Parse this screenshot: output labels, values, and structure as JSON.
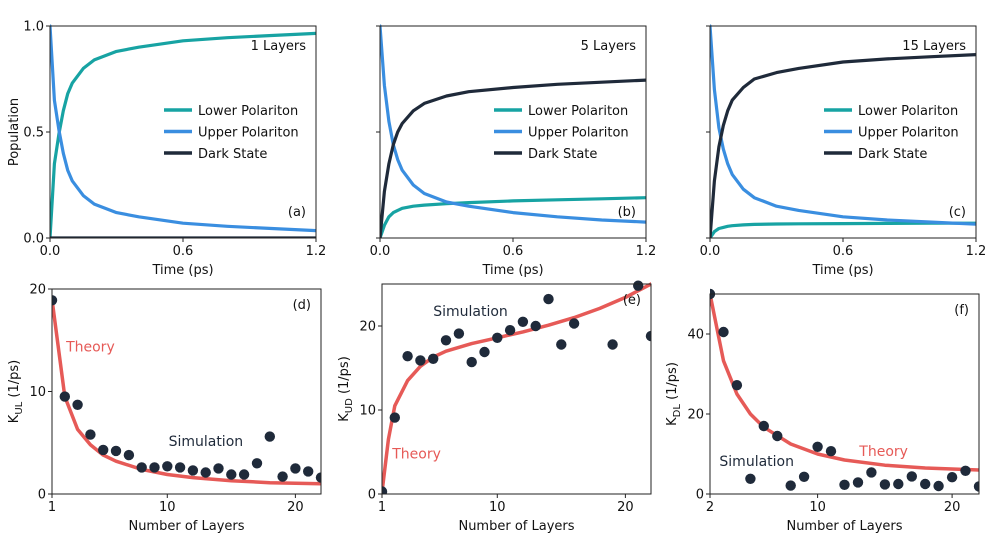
{
  "colors": {
    "lower": "#17a3a3",
    "upper": "#3a8ee0",
    "dark": "#1f2a3a",
    "theory": "#e65a57",
    "points": "#1f2a3a"
  },
  "chart_data": [
    {
      "id": "a",
      "type": "line",
      "panel_label": "(a)",
      "title": "1 Layers",
      "xlabel": "Time (ps)",
      "ylabel": "Population",
      "xlim": [
        0,
        1.2
      ],
      "ylim": [
        0,
        1
      ],
      "xticks": [
        0,
        0.6,
        1.2
      ],
      "xtick_labels": [
        "0.0",
        "0.6",
        "1.2"
      ],
      "yticks": [
        0,
        0.5,
        1
      ],
      "ytick_labels": [
        "0.0",
        "0.5",
        "1.0"
      ],
      "legend_position": "center-right",
      "x": [
        0,
        0.02,
        0.04,
        0.06,
        0.08,
        0.1,
        0.15,
        0.2,
        0.3,
        0.4,
        0.6,
        0.8,
        1.0,
        1.2
      ],
      "series": [
        {
          "name": "Lower Polariton",
          "color_key": "lower",
          "values": [
            0,
            0.35,
            0.49,
            0.6,
            0.68,
            0.73,
            0.8,
            0.84,
            0.88,
            0.9,
            0.93,
            0.945,
            0.955,
            0.965
          ]
        },
        {
          "name": "Upper Polariton",
          "color_key": "upper",
          "values": [
            1,
            0.65,
            0.51,
            0.4,
            0.32,
            0.27,
            0.2,
            0.16,
            0.12,
            0.1,
            0.07,
            0.055,
            0.045,
            0.035
          ]
        },
        {
          "name": "Dark State",
          "color_key": "dark",
          "values": [
            0,
            0,
            0,
            0,
            0,
            0,
            0,
            0,
            0,
            0,
            0,
            0,
            0,
            0
          ]
        }
      ]
    },
    {
      "id": "b",
      "type": "line",
      "panel_label": "(b)",
      "title": "5 Layers",
      "xlabel": "Time (ps)",
      "ylabel": "",
      "xlim": [
        0,
        1.2
      ],
      "ylim": [
        0,
        1
      ],
      "xticks": [
        0,
        0.6,
        1.2
      ],
      "xtick_labels": [
        "0.0",
        "0.6",
        "1.2"
      ],
      "yticks": [
        0,
        0.5,
        1
      ],
      "ytick_labels": [],
      "legend_position": "center-right",
      "x": [
        0,
        0.02,
        0.04,
        0.06,
        0.08,
        0.1,
        0.15,
        0.2,
        0.3,
        0.4,
        0.6,
        0.8,
        1.0,
        1.2
      ],
      "series": [
        {
          "name": "Lower Polariton",
          "color_key": "lower",
          "values": [
            0,
            0.06,
            0.1,
            0.12,
            0.13,
            0.14,
            0.15,
            0.155,
            0.162,
            0.167,
            0.175,
            0.18,
            0.185,
            0.19
          ]
        },
        {
          "name": "Upper Polariton",
          "color_key": "upper",
          "values": [
            1,
            0.72,
            0.55,
            0.44,
            0.37,
            0.32,
            0.25,
            0.21,
            0.17,
            0.15,
            0.12,
            0.1,
            0.085,
            0.075
          ]
        },
        {
          "name": "Dark State",
          "color_key": "dark",
          "values": [
            0,
            0.22,
            0.35,
            0.44,
            0.5,
            0.54,
            0.6,
            0.635,
            0.67,
            0.69,
            0.71,
            0.725,
            0.735,
            0.745
          ]
        }
      ]
    },
    {
      "id": "c",
      "type": "line",
      "panel_label": "(c)",
      "title": "15 Layers",
      "xlabel": "Time (ps)",
      "ylabel": "",
      "xlim": [
        0,
        1.2
      ],
      "ylim": [
        0,
        1
      ],
      "xticks": [
        0,
        0.6,
        1.2
      ],
      "xtick_labels": [
        "0.0",
        "0.6",
        "1.2"
      ],
      "yticks": [
        0,
        0.5,
        1
      ],
      "ytick_labels": [],
      "legend_position": "center-right",
      "x": [
        0,
        0.02,
        0.04,
        0.06,
        0.08,
        0.1,
        0.15,
        0.2,
        0.3,
        0.4,
        0.6,
        0.8,
        1.0,
        1.2
      ],
      "series": [
        {
          "name": "Lower Polariton",
          "color_key": "lower",
          "values": [
            0,
            0.03,
            0.045,
            0.05,
            0.055,
            0.058,
            0.062,
            0.064,
            0.066,
            0.067,
            0.068,
            0.069,
            0.07,
            0.07
          ]
        },
        {
          "name": "Upper Polariton",
          "color_key": "upper",
          "values": [
            1,
            0.7,
            0.52,
            0.42,
            0.35,
            0.3,
            0.23,
            0.19,
            0.15,
            0.13,
            0.1,
            0.085,
            0.075,
            0.065
          ]
        },
        {
          "name": "Dark State",
          "color_key": "dark",
          "values": [
            0,
            0.27,
            0.43,
            0.53,
            0.6,
            0.65,
            0.71,
            0.75,
            0.78,
            0.8,
            0.83,
            0.845,
            0.855,
            0.865
          ]
        }
      ]
    },
    {
      "id": "d",
      "type": "scatter",
      "panel_label": "(d)",
      "xlabel": "Number of Layers",
      "ylabel_main": "K",
      "ylabel_sub": "UL",
      "ylabel_unit": " (1/ps)",
      "xlim": [
        1,
        22
      ],
      "ylim": [
        0,
        20
      ],
      "xticks": [
        1,
        10,
        20
      ],
      "xtick_labels": [
        "1",
        "10",
        "20"
      ],
      "yticks": [
        0,
        10,
        20
      ],
      "ytick_labels": [
        "0",
        "10",
        "20"
      ],
      "annotations": [
        {
          "text": "Theory",
          "x": 2.1,
          "y": 13.9,
          "color_key": "theory"
        },
        {
          "text": "Simulation",
          "x": 10.1,
          "y": 4.7,
          "color_key": "points"
        }
      ],
      "theory": {
        "x": [
          1,
          2,
          3,
          4,
          5,
          6,
          8,
          10,
          12,
          15,
          18,
          22
        ],
        "y": [
          19,
          9.5,
          6.3,
          4.8,
          3.8,
          3.2,
          2.4,
          1.9,
          1.6,
          1.3,
          1.1,
          1.0
        ]
      },
      "points": {
        "x": [
          1,
          2,
          3,
          4,
          5,
          6,
          7,
          8,
          9,
          10,
          11,
          12,
          13,
          14,
          15,
          16,
          17,
          18,
          19,
          20,
          21,
          22
        ],
        "y": [
          18.9,
          9.5,
          8.7,
          5.8,
          4.3,
          4.2,
          3.8,
          2.6,
          2.6,
          2.7,
          2.6,
          2.3,
          2.1,
          2.5,
          1.9,
          1.9,
          3.0,
          5.6,
          1.7,
          2.5,
          2.2,
          1.6
        ]
      }
    },
    {
      "id": "e",
      "type": "scatter",
      "panel_label": "(e)",
      "xlabel": "Number of Layers",
      "ylabel_main": "K",
      "ylabel_sub": "UD",
      "ylabel_unit": " (1/ps)",
      "xlim": [
        1,
        22
      ],
      "ylim": [
        0,
        25
      ],
      "xticks": [
        1,
        10,
        20
      ],
      "xtick_labels": [
        "1",
        "10",
        "20"
      ],
      "yticks": [
        0,
        10,
        20
      ],
      "ytick_labels": [
        "0",
        "10",
        "20"
      ],
      "annotations": [
        {
          "text": "Theory",
          "x": 1.8,
          "y": 4.2,
          "color_key": "theory"
        },
        {
          "text": "Simulation",
          "x": 5.0,
          "y": 21.2,
          "color_key": "points"
        }
      ],
      "theory": {
        "x": [
          1,
          1.5,
          2,
          3,
          4,
          5,
          6,
          8,
          10,
          12,
          14,
          16,
          18,
          20,
          22
        ],
        "y": [
          0.2,
          6.5,
          10.5,
          13.5,
          15.2,
          16.3,
          17,
          17.9,
          18.6,
          19.3,
          20.1,
          21.0,
          22.1,
          23.4,
          25
        ]
      },
      "points": {
        "x": [
          1,
          2,
          3,
          4,
          5,
          6,
          7,
          8,
          9,
          10,
          11,
          12,
          13,
          14,
          15,
          16,
          19,
          21,
          22
        ],
        "y": [
          0.3,
          9.1,
          16.4,
          15.9,
          16.1,
          18.3,
          19.1,
          15.7,
          16.9,
          18.6,
          19.5,
          20.5,
          20.0,
          23.2,
          17.8,
          20.3,
          17.8,
          24.8,
          18.8
        ]
      }
    },
    {
      "id": "f",
      "type": "scatter",
      "panel_label": "(f)",
      "xlabel": "Number of Layers",
      "ylabel_main": "K",
      "ylabel_sub": "DL",
      "ylabel_unit": " (1/ps)",
      "xlim": [
        2,
        22
      ],
      "ylim": [
        0,
        50
      ],
      "xticks": [
        2,
        10,
        20
      ],
      "xtick_labels": [
        "2",
        "10",
        "20"
      ],
      "yticks": [
        0,
        20,
        40
      ],
      "ytick_labels": [
        "0",
        "20",
        "40"
      ],
      "annotations": [
        {
          "text": "Theory",
          "x": 13.1,
          "y": 9.5,
          "color_key": "theory"
        },
        {
          "text": "Simulation",
          "x": 2.7,
          "y": 7.0,
          "color_key": "points"
        }
      ],
      "theory": {
        "x": [
          2,
          3,
          4,
          5,
          6,
          8,
          10,
          12,
          15,
          18,
          22
        ],
        "y": [
          50,
          33.3,
          25,
          20,
          16.7,
          12.5,
          10,
          8.5,
          7.2,
          6.5,
          6.0
        ]
      },
      "points": {
        "x": [
          2,
          3,
          4,
          5,
          6,
          7,
          8,
          9,
          10,
          11,
          12,
          13,
          14,
          15,
          16,
          17,
          18,
          19,
          20,
          21,
          22
        ],
        "y": [
          50,
          40.5,
          27.2,
          3.8,
          17,
          14.5,
          2.1,
          4.3,
          11.8,
          10.7,
          2.3,
          2.9,
          5.4,
          2.4,
          2.5,
          4.4,
          2.5,
          2.0,
          4.2,
          5.8,
          1.9
        ]
      }
    }
  ]
}
